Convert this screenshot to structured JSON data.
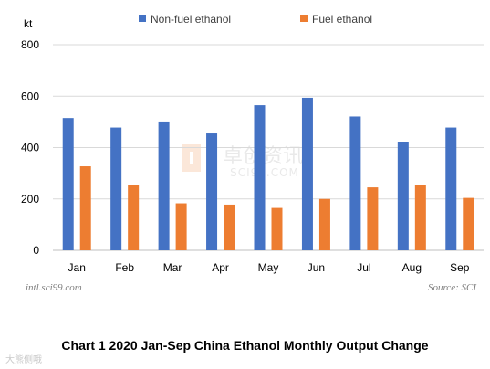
{
  "chart_data": {
    "type": "bar",
    "ylabel": "kt",
    "ylim": [
      0,
      800
    ],
    "yticks": [
      0,
      200,
      400,
      600,
      800
    ],
    "grid": true,
    "legend_position": "top",
    "categories": [
      "Jan",
      "Feb",
      "Mar",
      "Apr",
      "May",
      "Jun",
      "Jul",
      "Aug",
      "Sep"
    ],
    "series": [
      {
        "name": "Non-fuel ethanol",
        "color": "#4472c4",
        "values": [
          515,
          478,
          498,
          455,
          565,
          594,
          521,
          420,
          478
        ]
      },
      {
        "name": "Fuel ethanol",
        "color": "#ed7d31",
        "values": [
          327,
          255,
          183,
          178,
          165,
          200,
          245,
          255,
          204
        ]
      }
    ],
    "watermark_center": "卓创资讯",
    "watermark_center_sub": "SCI99.COM"
  },
  "footer": {
    "left": "intl.sci99.com",
    "right": "Source: SCI"
  },
  "caption": "Chart 1 2020 Jan-Sep China Ethanol Monthly Output Change",
  "corner_mark": "大熊侧哦"
}
